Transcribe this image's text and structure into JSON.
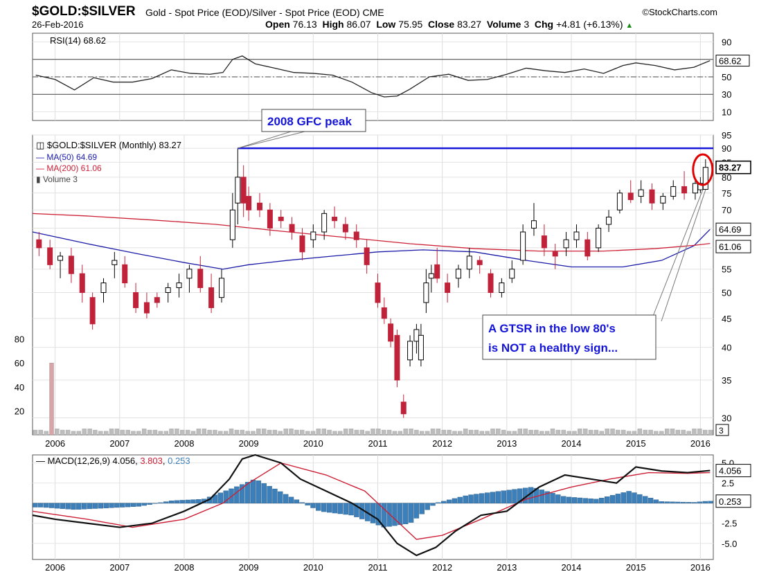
{
  "header": {
    "symbol": "$GOLD:$SILVER",
    "description": "Gold - Spot Price (EOD)/Silver - Spot Price (EOD)",
    "exchange": "CME",
    "brand": "StockCharts.com",
    "date": "26-Feb-2016",
    "open_label": "Open",
    "open": "76.13",
    "high_label": "High",
    "high": "86.07",
    "low_label": "Low",
    "low": "75.95",
    "close_label": "Close",
    "close": "83.27",
    "volume_label": "Volume",
    "volume": "3",
    "chg_label": "Chg",
    "chg": "+4.81 (+6.13%)"
  },
  "colors": {
    "up": "#000000",
    "down": "#c0223a",
    "ma50": "#1a1aa8",
    "ma200": "#cc1f35",
    "annotation": "#1414d8",
    "circle": "#e00000",
    "macd_hist": "#3d7fb8",
    "volume": "#d9a3a8"
  },
  "chart_data": [
    {
      "type": "line",
      "panel": "rsi",
      "legend": "RSI(14) 68.62",
      "last_label": "68.62",
      "ylim": [
        0,
        100
      ],
      "ticks": [
        10,
        30,
        50,
        70,
        90
      ],
      "reference_lines": [
        30,
        50,
        70
      ],
      "x": [
        2005.7,
        2006.0,
        2006.3,
        2006.6,
        2006.9,
        2007.2,
        2007.5,
        2007.8,
        2008.1,
        2008.4,
        2008.6,
        2008.75,
        2008.9,
        2009.1,
        2009.4,
        2009.7,
        2010.0,
        2010.3,
        2010.6,
        2010.9,
        2011.1,
        2011.3,
        2011.5,
        2011.8,
        2012.1,
        2012.4,
        2012.7,
        2013.0,
        2013.3,
        2013.6,
        2013.9,
        2014.2,
        2014.5,
        2014.8,
        2015.0,
        2015.3,
        2015.6,
        2015.9,
        2016.15
      ],
      "values": [
        52,
        47,
        35,
        49,
        44,
        44,
        48,
        58,
        54,
        53,
        55,
        70,
        74,
        65,
        60,
        55,
        54,
        52,
        44,
        32,
        27,
        28,
        36,
        50,
        53,
        46,
        47,
        53,
        60,
        57,
        55,
        59,
        54,
        63,
        66,
        63,
        58,
        61,
        68.62
      ]
    },
    {
      "type": "candlestick",
      "panel": "price",
      "legend": "$GOLD:$SILVER (Monthly) 83.27",
      "last_label": "83.27",
      "xlim": [
        2005.65,
        2016.2
      ],
      "ylim": [
        28,
        95
      ],
      "y_scale": "log",
      "ticks": [
        30,
        35,
        40,
        45,
        50,
        55,
        60,
        65,
        70,
        75,
        80,
        85,
        90,
        95
      ],
      "x_ticks": [
        "2006",
        "2007",
        "2008",
        "2009",
        "2010",
        "2011",
        "2012",
        "2013",
        "2014",
        "2015",
        "2016"
      ],
      "candles": [
        {
          "x": 2005.75,
          "o": 62,
          "h": 64,
          "l": 58,
          "c": 60
        },
        {
          "x": 2005.92,
          "o": 60,
          "h": 62,
          "l": 55,
          "c": 56
        },
        {
          "x": 2006.08,
          "o": 57,
          "h": 59,
          "l": 53,
          "c": 58
        },
        {
          "x": 2006.25,
          "o": 58,
          "h": 60,
          "l": 52,
          "c": 54
        },
        {
          "x": 2006.42,
          "o": 54,
          "h": 56,
          "l": 48,
          "c": 50
        },
        {
          "x": 2006.58,
          "o": 49,
          "h": 50,
          "l": 43,
          "c": 44
        },
        {
          "x": 2006.75,
          "o": 50,
          "h": 53,
          "l": 48,
          "c": 52
        },
        {
          "x": 2006.92,
          "o": 56,
          "h": 59,
          "l": 53,
          "c": 57
        },
        {
          "x": 2007.08,
          "o": 56,
          "h": 58,
          "l": 51,
          "c": 52
        },
        {
          "x": 2007.25,
          "o": 50,
          "h": 52,
          "l": 46,
          "c": 47
        },
        {
          "x": 2007.42,
          "o": 48,
          "h": 50,
          "l": 45,
          "c": 46
        },
        {
          "x": 2007.58,
          "o": 49,
          "h": 50,
          "l": 47,
          "c": 48
        },
        {
          "x": 2007.75,
          "o": 50,
          "h": 52,
          "l": 48,
          "c": 51
        },
        {
          "x": 2007.92,
          "o": 51,
          "h": 54,
          "l": 49,
          "c": 52
        },
        {
          "x": 2008.08,
          "o": 53,
          "h": 56,
          "l": 50,
          "c": 55
        },
        {
          "x": 2008.25,
          "o": 55,
          "h": 58,
          "l": 50,
          "c": 51
        },
        {
          "x": 2008.42,
          "o": 51,
          "h": 54,
          "l": 46,
          "c": 47
        },
        {
          "x": 2008.58,
          "o": 49,
          "h": 55,
          "l": 48,
          "c": 53
        },
        {
          "x": 2008.75,
          "o": 62,
          "h": 75,
          "l": 60,
          "c": 70
        },
        {
          "x": 2008.83,
          "o": 72,
          "h": 90,
          "l": 66,
          "c": 80
        },
        {
          "x": 2008.92,
          "o": 80,
          "h": 84,
          "l": 68,
          "c": 72
        },
        {
          "x": 2009.0,
          "o": 74,
          "h": 77,
          "l": 67,
          "c": 70
        },
        {
          "x": 2009.17,
          "o": 72,
          "h": 75,
          "l": 68,
          "c": 70
        },
        {
          "x": 2009.33,
          "o": 70,
          "h": 72,
          "l": 63,
          "c": 65
        },
        {
          "x": 2009.5,
          "o": 68,
          "h": 70,
          "l": 65,
          "c": 67
        },
        {
          "x": 2009.67,
          "o": 66,
          "h": 68,
          "l": 62,
          "c": 64
        },
        {
          "x": 2009.83,
          "o": 63,
          "h": 65,
          "l": 57,
          "c": 59
        },
        {
          "x": 2010.0,
          "o": 62,
          "h": 66,
          "l": 60,
          "c": 64
        },
        {
          "x": 2010.17,
          "o": 64,
          "h": 70,
          "l": 62,
          "c": 69
        },
        {
          "x": 2010.33,
          "o": 68,
          "h": 71,
          "l": 65,
          "c": 67
        },
        {
          "x": 2010.5,
          "o": 66,
          "h": 68,
          "l": 62,
          "c": 64
        },
        {
          "x": 2010.67,
          "o": 64,
          "h": 66,
          "l": 60,
          "c": 62
        },
        {
          "x": 2010.83,
          "o": 60,
          "h": 62,
          "l": 54,
          "c": 56
        },
        {
          "x": 2011.0,
          "o": 52,
          "h": 54,
          "l": 47,
          "c": 48
        },
        {
          "x": 2011.1,
          "o": 47,
          "h": 49,
          "l": 44,
          "c": 45
        },
        {
          "x": 2011.2,
          "o": 44,
          "h": 45,
          "l": 40,
          "c": 41
        },
        {
          "x": 2011.3,
          "o": 42,
          "h": 43,
          "l": 34,
          "c": 35
        },
        {
          "x": 2011.4,
          "o": 32,
          "h": 33,
          "l": 30,
          "c": 30.5
        },
        {
          "x": 2011.5,
          "o": 38,
          "h": 42,
          "l": 37,
          "c": 41
        },
        {
          "x": 2011.6,
          "o": 41,
          "h": 44,
          "l": 39,
          "c": 43
        },
        {
          "x": 2011.67,
          "o": 38,
          "h": 44,
          "l": 37,
          "c": 42
        },
        {
          "x": 2011.75,
          "o": 48,
          "h": 55,
          "l": 46,
          "c": 52
        },
        {
          "x": 2011.83,
          "o": 53,
          "h": 56,
          "l": 50,
          "c": 54
        },
        {
          "x": 2011.92,
          "o": 56,
          "h": 60,
          "l": 52,
          "c": 53
        },
        {
          "x": 2012.08,
          "o": 52,
          "h": 54,
          "l": 48,
          "c": 50
        },
        {
          "x": 2012.25,
          "o": 53,
          "h": 56,
          "l": 51,
          "c": 55
        },
        {
          "x": 2012.42,
          "o": 55,
          "h": 60,
          "l": 53,
          "c": 58
        },
        {
          "x": 2012.58,
          "o": 57,
          "h": 58,
          "l": 54,
          "c": 56
        },
        {
          "x": 2012.75,
          "o": 54,
          "h": 55,
          "l": 49,
          "c": 50
        },
        {
          "x": 2012.92,
          "o": 50,
          "h": 53,
          "l": 49,
          "c": 52
        },
        {
          "x": 2013.08,
          "o": 53,
          "h": 57,
          "l": 52,
          "c": 55
        },
        {
          "x": 2013.25,
          "o": 57,
          "h": 66,
          "l": 56,
          "c": 64
        },
        {
          "x": 2013.42,
          "o": 65,
          "h": 72,
          "l": 63,
          "c": 67
        },
        {
          "x": 2013.58,
          "o": 63,
          "h": 66,
          "l": 58,
          "c": 60
        },
        {
          "x": 2013.75,
          "o": 59,
          "h": 61,
          "l": 55,
          "c": 58
        },
        {
          "x": 2013.92,
          "o": 60,
          "h": 64,
          "l": 58,
          "c": 62
        },
        {
          "x": 2014.08,
          "o": 62,
          "h": 66,
          "l": 60,
          "c": 64
        },
        {
          "x": 2014.25,
          "o": 62,
          "h": 64,
          "l": 57,
          "c": 58
        },
        {
          "x": 2014.42,
          "o": 60,
          "h": 66,
          "l": 59,
          "c": 65
        },
        {
          "x": 2014.58,
          "o": 66,
          "h": 70,
          "l": 64,
          "c": 68
        },
        {
          "x": 2014.75,
          "o": 70,
          "h": 76,
          "l": 69,
          "c": 75
        },
        {
          "x": 2014.92,
          "o": 75,
          "h": 79,
          "l": 72,
          "c": 73
        },
        {
          "x": 2015.08,
          "o": 74,
          "h": 79,
          "l": 72,
          "c": 76
        },
        {
          "x": 2015.25,
          "o": 76,
          "h": 78,
          "l": 70,
          "c": 72
        },
        {
          "x": 2015.42,
          "o": 72,
          "h": 75,
          "l": 70,
          "c": 74
        },
        {
          "x": 2015.58,
          "o": 74,
          "h": 79,
          "l": 73,
          "c": 77
        },
        {
          "x": 2015.75,
          "o": 77,
          "h": 82,
          "l": 73,
          "c": 75
        },
        {
          "x": 2015.92,
          "o": 75,
          "h": 80,
          "l": 73,
          "c": 78
        },
        {
          "x": 2016.0,
          "o": 76,
          "h": 80,
          "l": 75,
          "c": 78
        },
        {
          "x": 2016.08,
          "o": 76.13,
          "h": 86.07,
          "l": 75.95,
          "c": 83.27
        }
      ],
      "ma": [
        {
          "name": "MA(50) 64.69",
          "last": "64.69",
          "x": [
            2005.65,
            2006.5,
            2007.3,
            2008.0,
            2008.6,
            2009.0,
            2009.6,
            2010.3,
            2011.0,
            2011.7,
            2012.5,
            2013.3,
            2014.0,
            2014.8,
            2015.4,
            2015.9,
            2016.15
          ],
          "values": [
            64,
            61,
            58.5,
            56.5,
            55,
            56,
            57,
            58,
            59,
            59.5,
            59,
            57,
            55.5,
            55.5,
            57,
            60.5,
            64.69
          ]
        },
        {
          "name": "MA(200) 61.06",
          "last": "61.06",
          "x": [
            2005.65,
            2006.5,
            2007.5,
            2008.5,
            2009.5,
            2010.5,
            2011.5,
            2012.5,
            2013.5,
            2014.5,
            2015.3,
            2015.9,
            2016.15
          ],
          "values": [
            69,
            68.3,
            67.2,
            66,
            64.2,
            62.6,
            61,
            59.8,
            59.2,
            59.2,
            59.8,
            60.6,
            61.06
          ]
        }
      ],
      "volume": {
        "legend": "Volume 3",
        "last_label": "3",
        "ylim": [
          0,
          100
        ],
        "ticks": [
          20,
          40,
          60,
          80
        ],
        "spike_x": 2006.0,
        "spike_value": 60,
        "base_value": 3
      },
      "annotations": [
        {
          "text": "2008 GFC peak",
          "level": 90
        },
        {
          "text": "A GTSR in the low 80's\nis NOT a healthy sign..."
        }
      ]
    },
    {
      "type": "line",
      "panel": "macd",
      "legend_prefix": "MACD(12,26,9)",
      "legend_macd": "4.056",
      "legend_signal": "3.803",
      "legend_hist": "0.253",
      "last_macd_label": "4.056",
      "last_hist_label": "0.253",
      "ylim": [
        -7,
        6
      ],
      "ticks": [
        -5.0,
        -2.5,
        2.5,
        5.0
      ],
      "tick_labels": [
        "-5.0",
        "-2.5",
        "2.5",
        "5.0"
      ],
      "macd": {
        "x": [
          2005.65,
          2006.0,
          2006.5,
          2007.0,
          2007.5,
          2008.0,
          2008.4,
          2008.7,
          2008.9,
          2009.1,
          2009.5,
          2009.8,
          2010.2,
          2010.6,
          2011.0,
          2011.3,
          2011.6,
          2011.9,
          2012.2,
          2012.6,
          2013.0,
          2013.5,
          2013.9,
          2014.3,
          2014.7,
          2015.0,
          2015.4,
          2015.8,
          2016.15
        ],
        "values": [
          -1.5,
          -2,
          -2.5,
          -3,
          -2.5,
          -1,
          0.5,
          3,
          5.5,
          6,
          5,
          3,
          1.5,
          0,
          -2,
          -5,
          -6.5,
          -5.5,
          -3.5,
          -1.5,
          -1,
          2,
          3.5,
          3,
          2.5,
          4.5,
          4,
          3.8,
          4.056
        ]
      },
      "signal": {
        "x": [
          2005.65,
          2006.5,
          2007.2,
          2008.0,
          2008.6,
          2009.0,
          2009.5,
          2010.2,
          2010.8,
          2011.2,
          2011.6,
          2012.0,
          2012.6,
          2013.3,
          2014.0,
          2014.6,
          2015.2,
          2015.8,
          2016.15
        ],
        "values": [
          -1,
          -2,
          -3,
          -2,
          0,
          2.5,
          5,
          3.5,
          1.5,
          -1.5,
          -4.5,
          -4,
          -2,
          0.5,
          2,
          3,
          3.8,
          3.7,
          3.803
        ]
      },
      "histogram": {
        "x": [
          2005.8,
          2006.3,
          2006.8,
          2007.3,
          2007.8,
          2008.3,
          2008.8,
          2009.1,
          2009.6,
          2010.1,
          2010.6,
          2011.1,
          2011.5,
          2011.9,
          2012.4,
          2012.9,
          2013.4,
          2013.9,
          2014.4,
          2014.9,
          2015.4,
          2015.9,
          2016.1
        ],
        "values": [
          -0.5,
          -0.8,
          -0.6,
          -0.4,
          0.3,
          0.5,
          2,
          3,
          1,
          -1,
          -1.5,
          -3,
          -2.5,
          0,
          1,
          1.5,
          2,
          0.8,
          0.5,
          1.5,
          0.2,
          0.1,
          0.253
        ]
      }
    }
  ]
}
